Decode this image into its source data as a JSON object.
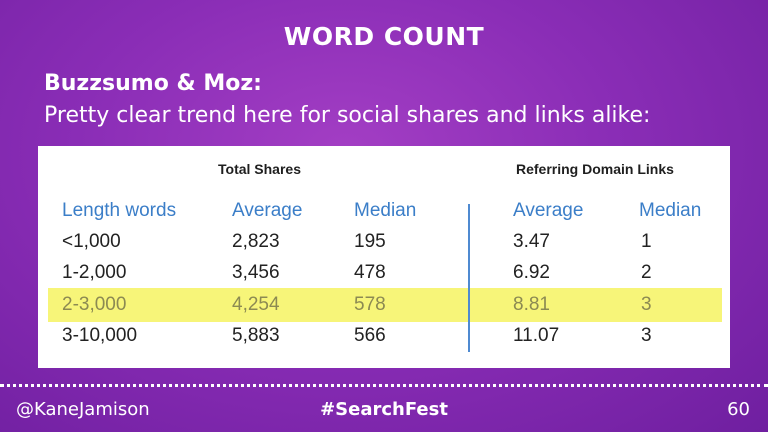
{
  "slide": {
    "title": "WORD COUNT",
    "intro_heading": "Buzzsumo & Moz:",
    "intro_text": "Pretty clear trend here for social shares and links alike:"
  },
  "table": {
    "group_headers": {
      "total_shares": "Total Shares",
      "referring_domain_links": "Referring Domain Links"
    },
    "columns": [
      "Length words",
      "Average",
      "Median",
      "Average",
      "Median"
    ],
    "rows": [
      [
        "<1,000",
        "2,823",
        "195",
        "3.47",
        "1"
      ],
      [
        "1-2,000",
        "3,456",
        "478",
        "6.92",
        "2"
      ],
      [
        "2-3,000",
        "4,254",
        "578",
        "8.81",
        "3"
      ],
      [
        "3-10,000",
        "5,883",
        "566",
        "11.07",
        "3"
      ]
    ],
    "highlighted_row": "2-3,000",
    "colors": {
      "header_text": "#3b7ec8",
      "highlight": "#f7f579",
      "divider": "#4f8ad1"
    }
  },
  "footer": {
    "handle": "@KaneJamison",
    "hashtag": "#SearchFest",
    "page_number": "60"
  }
}
